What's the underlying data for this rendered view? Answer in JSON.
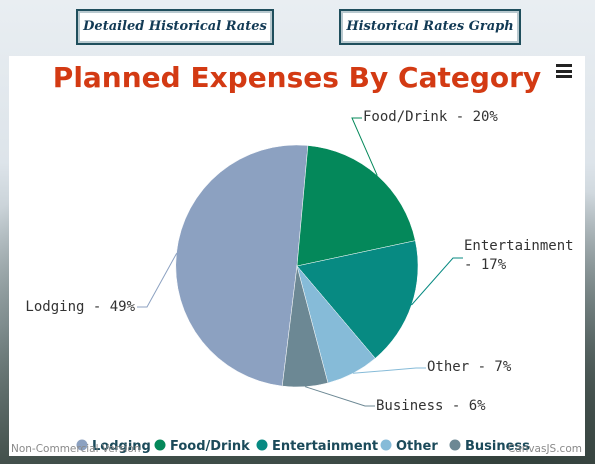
{
  "buttons": {
    "detailed": "Detailed Historical Rates",
    "graph": "Historical Rates Graph"
  },
  "watermark": {
    "left": "Non-Commercial Version",
    "right": "CanvasJS.com"
  },
  "colors": {
    "title": "#d33a13",
    "Lodging": "#8ca1c1",
    "Food/Drink": "#04885a",
    "Entertainment": "#078a82",
    "Other": "#86bbd8",
    "Business": "#6c8894"
  },
  "chart_data": {
    "type": "pie",
    "title": "Planned Expenses By Category",
    "slices": [
      {
        "label": "Lodging",
        "value": 49,
        "index_label": "Lodging - 49%"
      },
      {
        "label": "Food/Drink",
        "value": 20,
        "index_label": "Food/Drink - 20%"
      },
      {
        "label": "Entertainment",
        "value": 17,
        "index_label": "Entertainment - 17%"
      },
      {
        "label": "Other",
        "value": 7,
        "index_label": "Other - 7%"
      },
      {
        "label": "Business",
        "value": 6,
        "index_label": "Business - 6%"
      }
    ],
    "legend_placement": "bottom"
  }
}
